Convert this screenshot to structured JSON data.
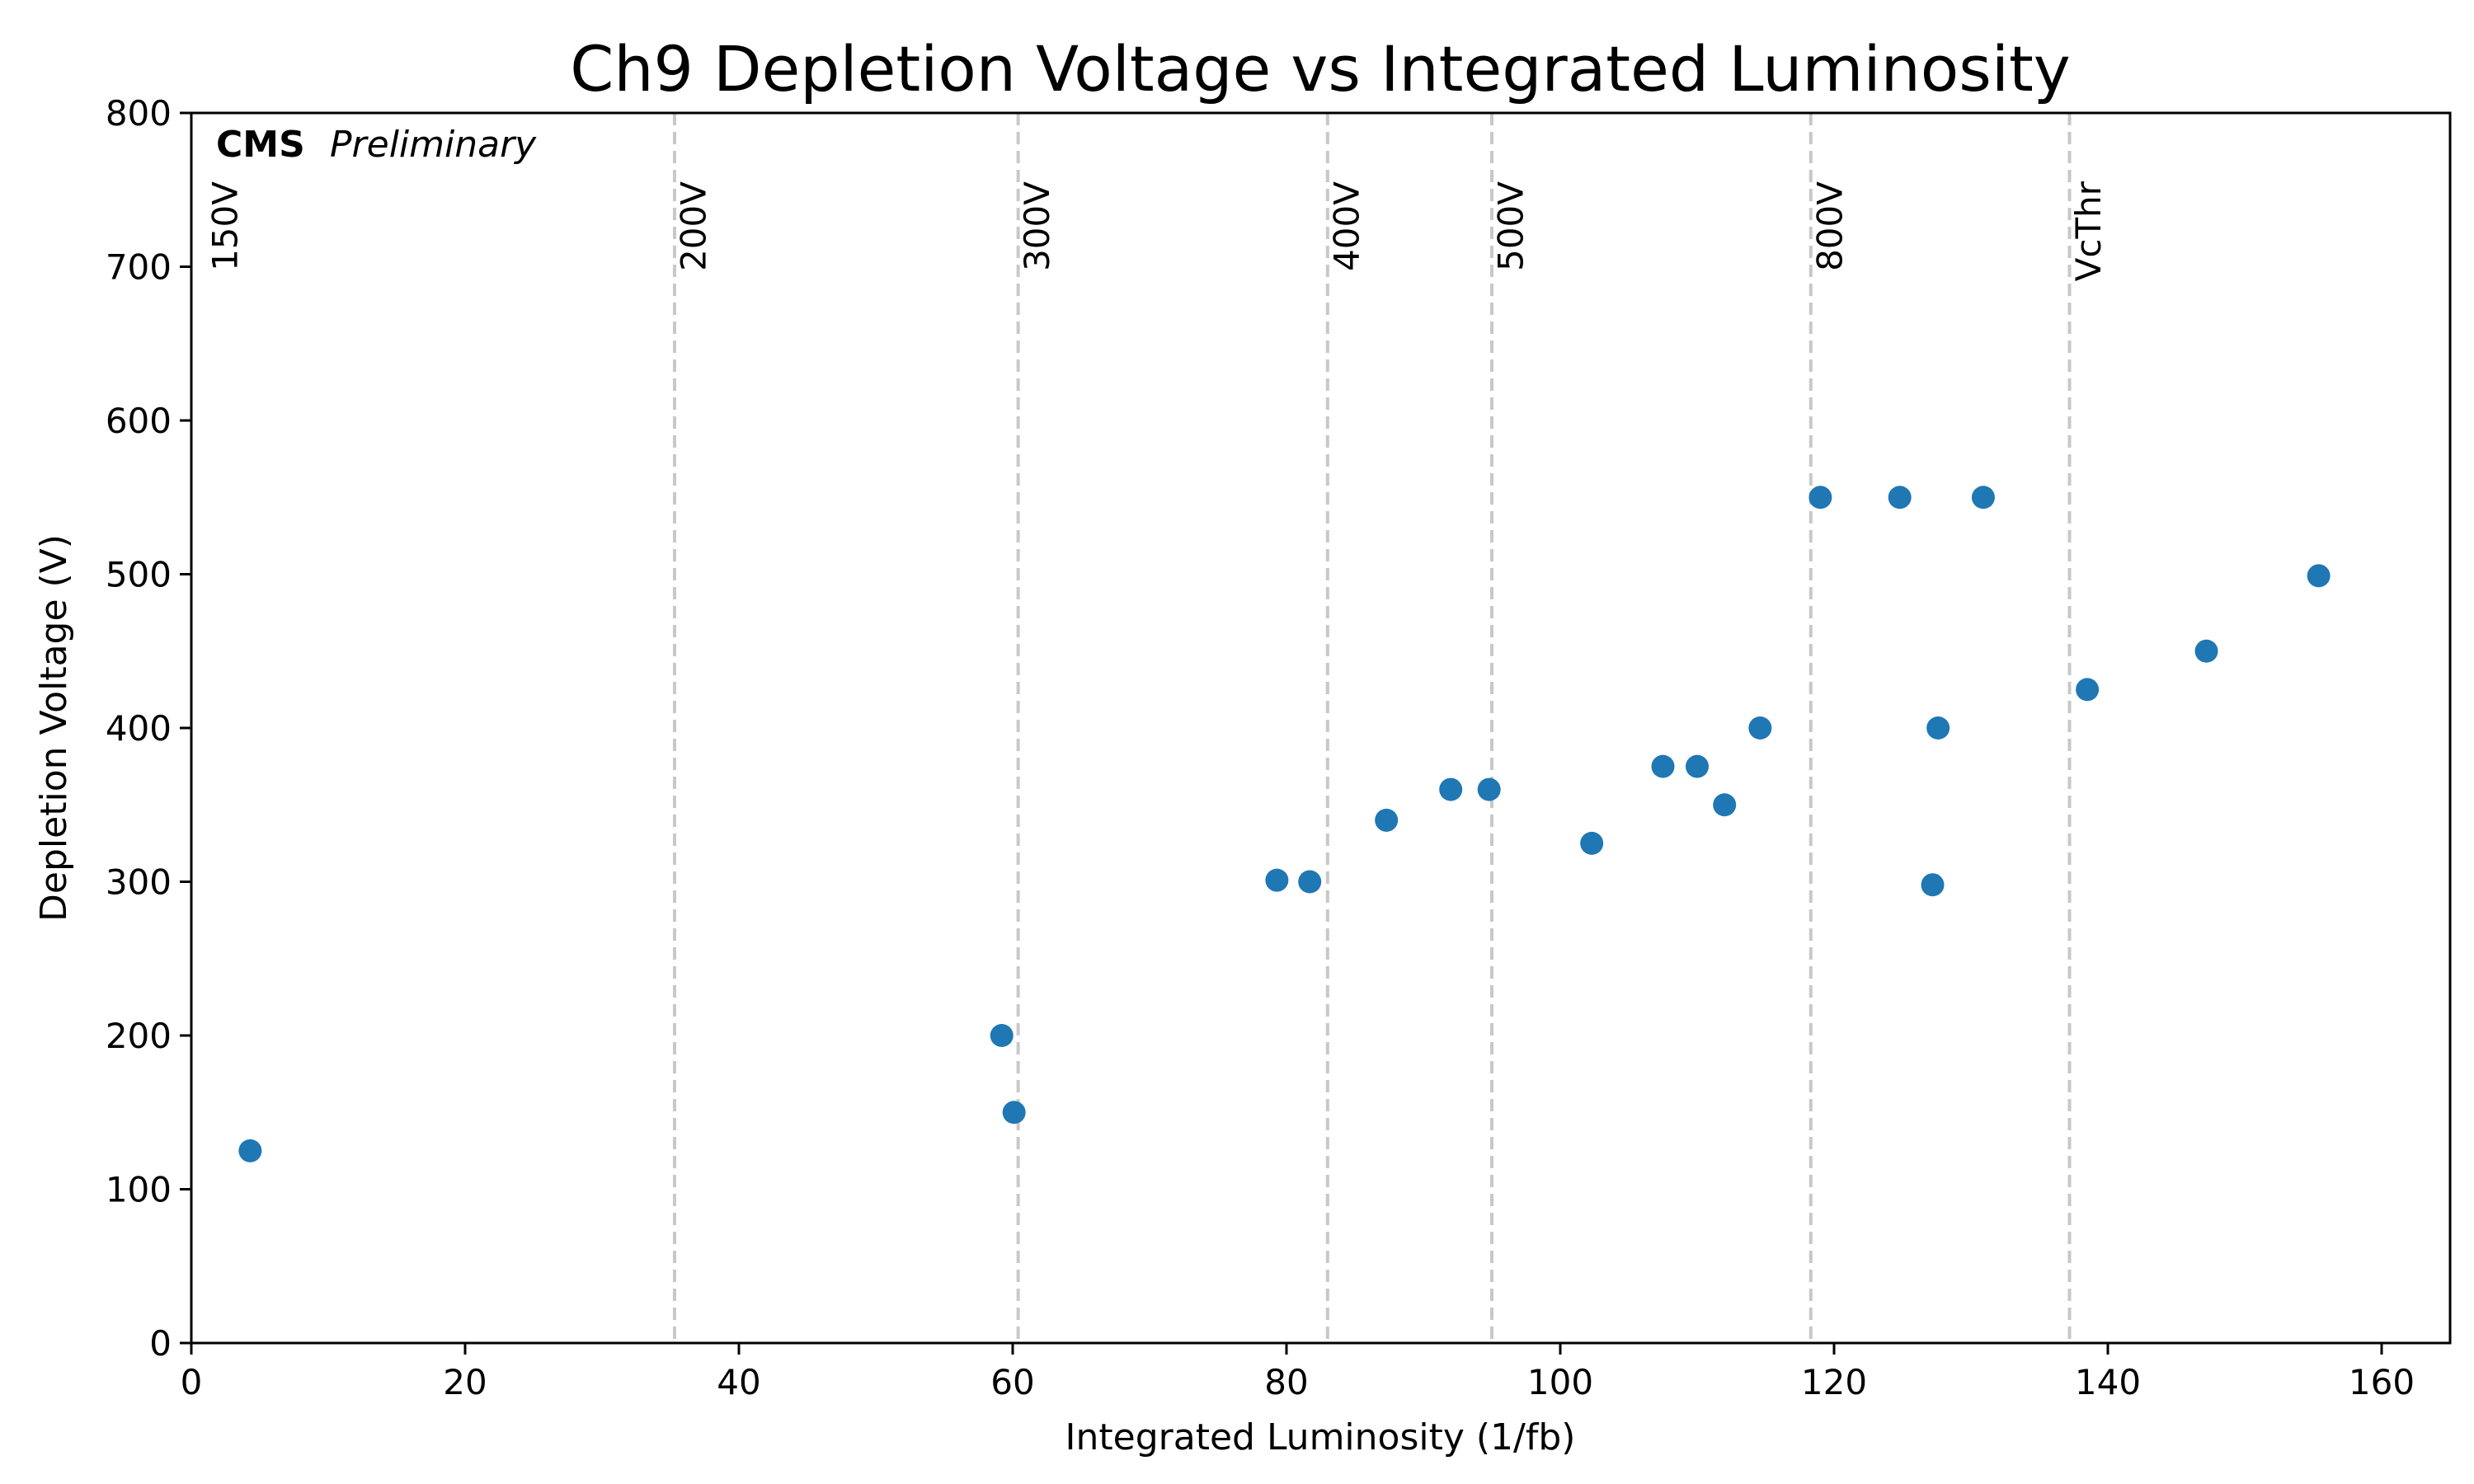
{
  "chart_data": {
    "type": "scatter",
    "title": "Ch9 Depletion Voltage vs Integrated Luminosity",
    "xlabel": "Integrated Luminosity (1/fb)",
    "ylabel": "Depletion Voltage (V)",
    "xlim": [
      0,
      165
    ],
    "ylim": [
      0,
      800
    ],
    "xticks": [
      0,
      20,
      40,
      60,
      80,
      100,
      120,
      140,
      160
    ],
    "yticks": [
      0,
      100,
      200,
      300,
      400,
      500,
      600,
      700,
      800
    ],
    "grid": false,
    "marker_color": "#1f77b4",
    "annotation": {
      "bold": "CMS",
      "italic": "Preliminary"
    },
    "vertical_lines": [
      {
        "x": 35.3,
        "label": "200V"
      },
      {
        "x": 60.4,
        "label": "300V"
      },
      {
        "x": 83.0,
        "label": "400V"
      },
      {
        "x": 95.0,
        "label": "500V"
      },
      {
        "x": 118.3,
        "label": "800V"
      },
      {
        "x": 137.2,
        "label": "VcThr"
      }
    ],
    "vertical_line_style": {
      "color": "#c8c8c8",
      "dash": "dashed"
    },
    "extra_labels": [
      {
        "x": 1.2,
        "label": "150V"
      }
    ],
    "points": [
      {
        "x": 4.3,
        "y": 125
      },
      {
        "x": 59.2,
        "y": 200
      },
      {
        "x": 60.1,
        "y": 150
      },
      {
        "x": 79.3,
        "y": 301
      },
      {
        "x": 81.7,
        "y": 300
      },
      {
        "x": 87.3,
        "y": 340
      },
      {
        "x": 92.0,
        "y": 360
      },
      {
        "x": 94.8,
        "y": 360
      },
      {
        "x": 102.3,
        "y": 325
      },
      {
        "x": 107.5,
        "y": 375
      },
      {
        "x": 110.0,
        "y": 375
      },
      {
        "x": 112.0,
        "y": 350
      },
      {
        "x": 114.6,
        "y": 400
      },
      {
        "x": 119.0,
        "y": 550
      },
      {
        "x": 124.8,
        "y": 550
      },
      {
        "x": 127.2,
        "y": 298
      },
      {
        "x": 127.6,
        "y": 400
      },
      {
        "x": 130.9,
        "y": 550
      },
      {
        "x": 138.5,
        "y": 425
      },
      {
        "x": 147.2,
        "y": 450
      },
      {
        "x": 155.4,
        "y": 499
      }
    ]
  }
}
